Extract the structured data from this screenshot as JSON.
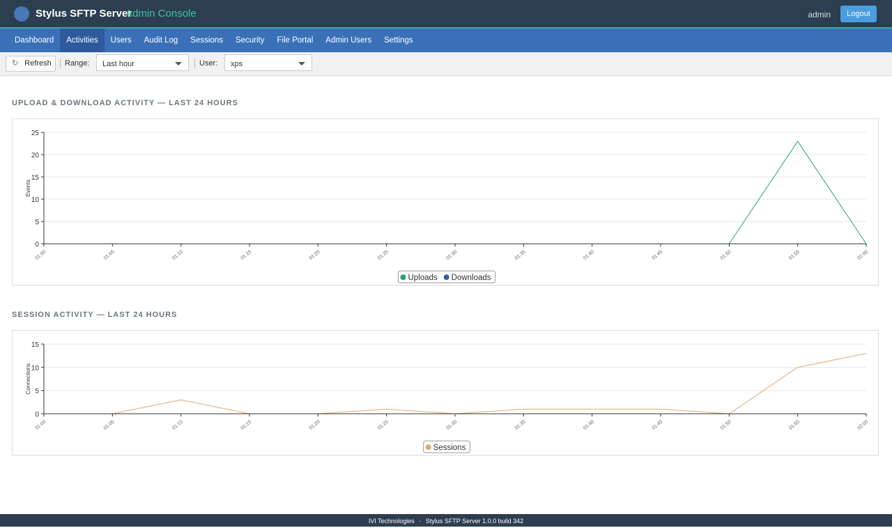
{
  "header": {
    "brand": "Stylus SFTP Server",
    "brand_suffix": "Admin Console",
    "user": "admin",
    "logout": "Logout"
  },
  "nav": {
    "items": [
      "Dashboard",
      "Activities",
      "Users",
      "Audit Log",
      "Sessions",
      "Security",
      "File Portal",
      "Admin Users",
      "Settings"
    ],
    "active": 1
  },
  "toolbar": {
    "refresh": "Refresh",
    "range_label": "Range:",
    "range_value": "Last hour",
    "user_label": "User:",
    "user_value": "xps"
  },
  "footer": {
    "company": "IVI Technologies",
    "separator": "·",
    "product": "Stylus SFTP Server 1.0.0 build 342"
  },
  "chart_data": [
    {
      "type": "line",
      "title": "UPLOAD & DOWNLOAD ACTIVITY — LAST 24 HOURS",
      "ylabel": "Events",
      "categories": [
        "01:00",
        "01:05",
        "01:10",
        "01:15",
        "01:20",
        "01:25",
        "01:30",
        "01:35",
        "01:40",
        "01:45",
        "01:50",
        "01:55",
        "02:00"
      ],
      "series": [
        {
          "name": "Uploads",
          "color": "#2a9d7f",
          "values": [
            0,
            0,
            0,
            0,
            0,
            0,
            0,
            0,
            0,
            0,
            0,
            23,
            0
          ]
        },
        {
          "name": "Downloads",
          "color": "#3a5fa0",
          "values": [
            0,
            0,
            0,
            0,
            0,
            0,
            0,
            0,
            0,
            0,
            0,
            0,
            0
          ]
        }
      ],
      "ylim": [
        0,
        25
      ],
      "yticks": [
        0,
        5,
        10,
        15,
        20,
        25
      ],
      "grid": true,
      "legend": "bottom"
    },
    {
      "type": "line",
      "title": "SESSION ACTIVITY — LAST 24 HOURS",
      "ylabel": "Connections",
      "categories": [
        "01:00",
        "01:05",
        "01:10",
        "01:15",
        "01:20",
        "01:25",
        "01:30",
        "01:35",
        "01:40",
        "01:45",
        "01:50",
        "01:55",
        "02:00"
      ],
      "series": [
        {
          "name": "Sessions",
          "color": "#e0a96d",
          "values": [
            0,
            0,
            3,
            0,
            0,
            1,
            0,
            1,
            1,
            1,
            0,
            10,
            13
          ]
        }
      ],
      "ylim": [
        0,
        15
      ],
      "yticks": [
        0,
        5,
        10,
        15
      ],
      "grid": true,
      "legend": "bottom"
    }
  ]
}
